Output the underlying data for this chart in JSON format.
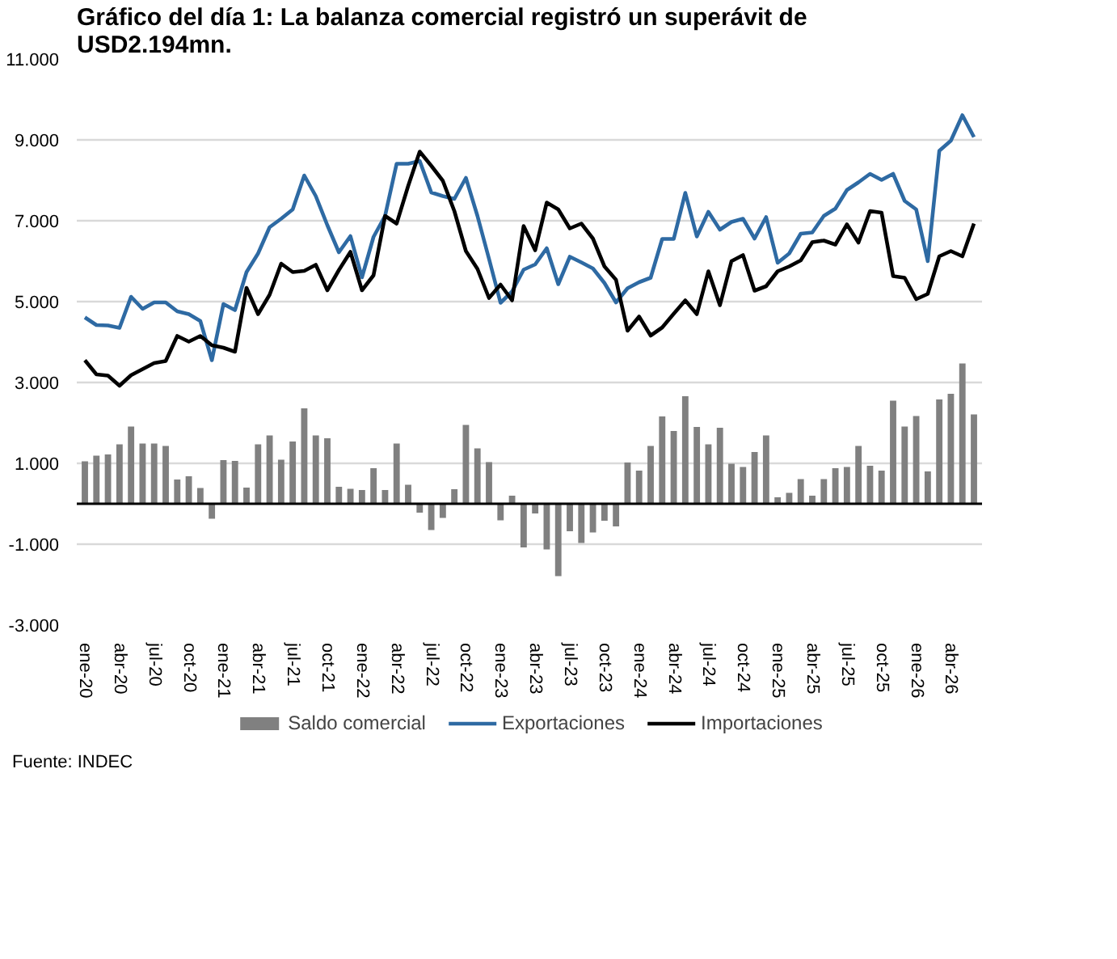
{
  "chart_data": {
    "type": "bar",
    "title": "Gráfico del día 1: La balanza comercial registró un superávit de USD2.194mn.",
    "categories": [
      "ene-20",
      null,
      null,
      "abr-20",
      null,
      null,
      "jul-20",
      null,
      null,
      "oct-20",
      null,
      null,
      "ene-21",
      null,
      null,
      "abr-21",
      null,
      null,
      "jul-21",
      null,
      null,
      "oct-21",
      null,
      null,
      "ene-22",
      null,
      null,
      "abr-22",
      null,
      null,
      "jul-22",
      null,
      null,
      "oct-22",
      null,
      null,
      "ene-23",
      null,
      null,
      "abr-23",
      null,
      null,
      "jul-23",
      null,
      null,
      "oct-23",
      null,
      null,
      "ene-24",
      null,
      null,
      "abr-24",
      null,
      null,
      "jul-24",
      null,
      null,
      "oct-24",
      null,
      null,
      "ene-25",
      null,
      null,
      "abr-25",
      null,
      null,
      "jul-25",
      null,
      null,
      "oct-25",
      null,
      null,
      "ene-26",
      null,
      null,
      "abr-26",
      null,
      null
    ],
    "series": [
      {
        "name": "Saldo comercial",
        "color": "#808080",
        "values": [
          1050,
          1190,
          1220,
          1470,
          1910,
          1490,
          1490,
          1430,
          600,
          680,
          390,
          -370,
          1080,
          1060,
          400,
          1470,
          1690,
          1090,
          1540,
          2360,
          1690,
          1620,
          420,
          370,
          340,
          880,
          340,
          1490,
          470,
          -220,
          -650,
          -350,
          360,
          1950,
          1370,
          1030,
          -410,
          200,
          -1080,
          -240,
          -1130,
          -1790,
          -680,
          -970,
          -710,
          -420,
          -560,
          1020,
          820,
          1430,
          2160,
          1800,
          2660,
          1900,
          1470,
          1880,
          990,
          910,
          1280,
          1690,
          160,
          270,
          610,
          200,
          610,
          880,
          910,
          1430,
          940,
          820,
          2550,
          1910,
          2170,
          800,
          2580,
          2720,
          3470,
          2210
        ]
      },
      {
        "name": "Exportaciones",
        "type": "line",
        "color": "#2e6aa3",
        "values": [
          4610,
          4420,
          4410,
          4350,
          5120,
          4820,
          4980,
          4980,
          4760,
          4690,
          4520,
          3550,
          4940,
          4790,
          5730,
          6190,
          6840,
          7050,
          7280,
          8120,
          7610,
          6890,
          6220,
          6620,
          5600,
          6600,
          7120,
          8410,
          8410,
          8480,
          7700,
          7610,
          7540,
          8060,
          7120,
          6060,
          4970,
          5250,
          5790,
          5920,
          6320,
          5430,
          6110,
          5970,
          5820,
          5460,
          4980,
          5330,
          5480,
          5590,
          6550,
          6550,
          7690,
          6610,
          7220,
          6780,
          6970,
          7050,
          6560,
          7090,
          5960,
          6190,
          6680,
          6710,
          7120,
          7300,
          7760,
          7950,
          8160,
          8010,
          8160,
          7490,
          7280,
          6000,
          8730,
          8980,
          9610,
          9070
        ]
      },
      {
        "name": "Importaciones",
        "type": "line",
        "color": "#000000",
        "values": [
          3550,
          3200,
          3170,
          2920,
          3180,
          3330,
          3480,
          3530,
          4150,
          4010,
          4150,
          3920,
          3860,
          3760,
          5340,
          4690,
          5170,
          5940,
          5730,
          5760,
          5910,
          5280,
          5780,
          6230,
          5280,
          5650,
          7120,
          6930,
          7860,
          8710,
          8360,
          7990,
          7240,
          6250,
          5810,
          5090,
          5420,
          5030,
          6870,
          6270,
          7450,
          7280,
          6810,
          6930,
          6560,
          5870,
          5540,
          4280,
          4630,
          4160,
          4360,
          4700,
          5030,
          4690,
          5750,
          4910,
          6000,
          6150,
          5270,
          5380,
          5750,
          5870,
          6020,
          6470,
          6510,
          6410,
          6910,
          6460,
          7240,
          7200,
          5630,
          5590,
          5060,
          5190,
          6120,
          6250,
          6120,
          6930
        ]
      }
    ],
    "ylim": [
      -3000,
      11000
    ],
    "yticks": [
      {
        "value": -3000,
        "label": "-3.000"
      },
      {
        "value": -1000,
        "label": "-1.000"
      },
      {
        "value": 1000,
        "label": "1.000"
      },
      {
        "value": 3000,
        "label": "3.000"
      },
      {
        "value": 5000,
        "label": "5.000"
      },
      {
        "value": 7000,
        "label": "7.000"
      },
      {
        "value": 9000,
        "label": "9.000"
      },
      {
        "value": 11000,
        "label": "11.000"
      }
    ],
    "ref_lines": [
      {
        "axis": "y",
        "value": 0,
        "color": "#000000"
      }
    ],
    "grid": "y",
    "legend": "bottom",
    "marker": "none",
    "line_style": "solid",
    "annotations": [
      "Fuente: INDEC"
    ]
  }
}
